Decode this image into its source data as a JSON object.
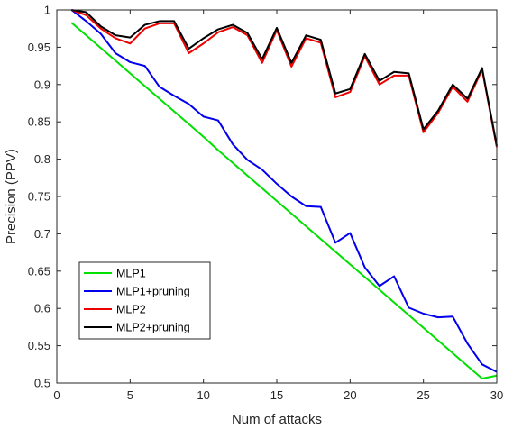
{
  "chart_data": {
    "type": "line",
    "title": "",
    "xlabel": "Num of attacks",
    "ylabel": "Precision (PPV)",
    "xlim": [
      0,
      30
    ],
    "ylim": [
      0.5,
      1
    ],
    "xticks": [
      0,
      5,
      10,
      15,
      20,
      25,
      30
    ],
    "yticks": [
      0.5,
      0.55,
      0.6,
      0.65,
      0.7,
      0.75,
      0.8,
      0.85,
      0.9,
      0.95,
      1
    ],
    "xtick_labels": [
      "0",
      "5",
      "10",
      "15",
      "20",
      "25",
      "30"
    ],
    "ytick_labels": [
      "0.5",
      "0.55",
      "0.6",
      "0.65",
      "0.7",
      "0.75",
      "0.8",
      "0.85",
      "0.9",
      "0.95",
      "1"
    ],
    "grid": false,
    "legend_position": "lower-left",
    "x": [
      1,
      2,
      3,
      4,
      5,
      6,
      7,
      8,
      9,
      10,
      11,
      12,
      13,
      14,
      15,
      16,
      17,
      18,
      19,
      20,
      21,
      22,
      23,
      24,
      25,
      26,
      27,
      28,
      29,
      30
    ],
    "series": [
      {
        "name": "MLP1",
        "color": "#00e000",
        "values": [
          0.983,
          0.966,
          0.949,
          0.932,
          0.915,
          0.898,
          0.881,
          0.864,
          0.847,
          0.83,
          0.812,
          0.795,
          0.778,
          0.761,
          0.744,
          0.727,
          0.71,
          0.693,
          0.676,
          0.659,
          0.642,
          0.625,
          0.608,
          0.591,
          0.574,
          0.557,
          0.54,
          0.523,
          0.506,
          0.51
        ]
      },
      {
        "name": "MLP1+pruning",
        "color": "#0000ee",
        "values": [
          1.0,
          0.985,
          0.968,
          0.942,
          0.93,
          0.925,
          0.897,
          0.885,
          0.874,
          0.857,
          0.852,
          0.82,
          0.799,
          0.786,
          0.767,
          0.75,
          0.737,
          0.736,
          0.688,
          0.701,
          0.655,
          0.63,
          0.643,
          0.601,
          0.593,
          0.588,
          0.589,
          0.553,
          0.525,
          0.515
        ]
      },
      {
        "name": "MLP2",
        "color": "#ee0000",
        "values": [
          1.0,
          0.993,
          0.975,
          0.962,
          0.955,
          0.975,
          0.982,
          0.982,
          0.942,
          0.955,
          0.97,
          0.977,
          0.966,
          0.929,
          0.973,
          0.924,
          0.962,
          0.956,
          0.883,
          0.89,
          0.938,
          0.9,
          0.912,
          0.912,
          0.836,
          0.862,
          0.897,
          0.877,
          0.92,
          0.816
        ]
      },
      {
        "name": "MLP2+pruning",
        "color": "#000000",
        "values": [
          1.0,
          0.997,
          0.978,
          0.966,
          0.963,
          0.98,
          0.985,
          0.985,
          0.948,
          0.962,
          0.974,
          0.98,
          0.969,
          0.934,
          0.976,
          0.929,
          0.966,
          0.96,
          0.888,
          0.894,
          0.941,
          0.905,
          0.917,
          0.915,
          0.84,
          0.865,
          0.9,
          0.881,
          0.922,
          0.818
        ]
      }
    ]
  }
}
